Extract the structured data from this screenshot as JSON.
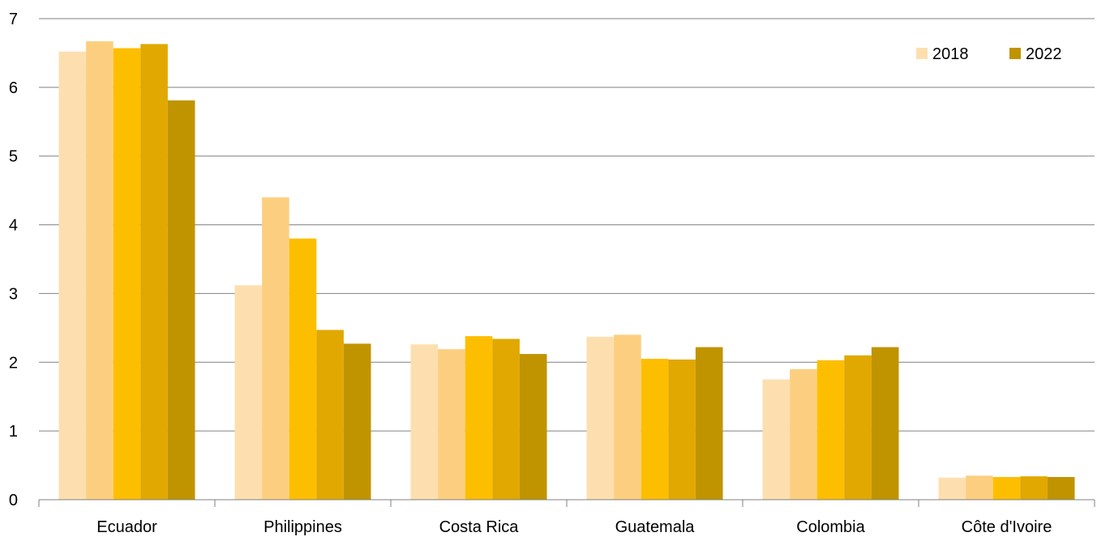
{
  "chart_data": {
    "type": "bar",
    "title": "",
    "xlabel": "",
    "ylabel": "",
    "ylim": [
      0,
      7
    ],
    "yticks": [
      0,
      1,
      2,
      3,
      4,
      5,
      6,
      7
    ],
    "grid": true,
    "legend_position": "top-right",
    "categories": [
      "Ecuador",
      "Philippines",
      "Costa Rica",
      "Guatemala",
      "Colombia",
      "Côte d'Ivoire"
    ],
    "series": [
      {
        "name": "2018",
        "color": "#FDDFAF",
        "values": [
          6.52,
          3.12,
          2.26,
          2.37,
          1.75,
          0.32
        ]
      },
      {
        "color": "#FCCF80",
        "values": [
          6.67,
          4.4,
          2.19,
          2.4,
          1.9,
          0.35
        ]
      },
      {
        "color": "#FEBE00",
        "values": [
          6.57,
          3.8,
          2.38,
          2.05,
          2.03,
          0.33
        ]
      },
      {
        "color": "#E0A800",
        "values": [
          6.63,
          2.47,
          2.34,
          2.04,
          2.1,
          0.34
        ]
      },
      {
        "name": "2022",
        "color": "#C09400",
        "values": [
          5.81,
          2.27,
          2.12,
          2.22,
          2.22,
          0.33
        ]
      }
    ]
  },
  "colors": {
    "axis": "#808080",
    "grid": "#808080",
    "text": "#000000"
  }
}
